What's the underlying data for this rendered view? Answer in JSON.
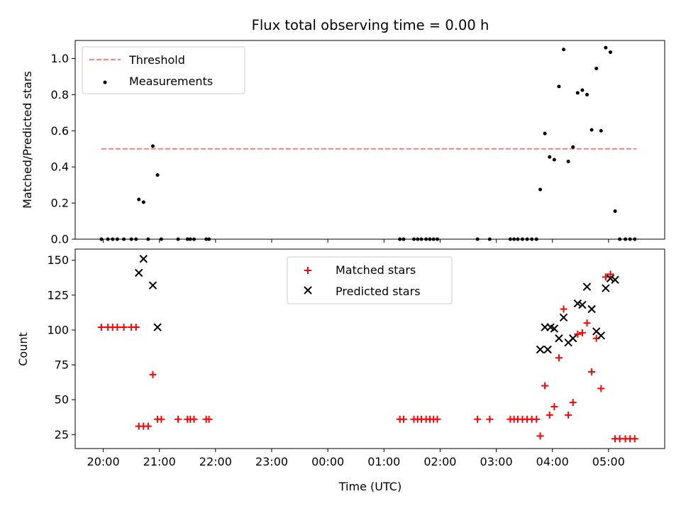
{
  "chart_data": [
    {
      "type": "scatter",
      "title": "Flux total observing time = 0.00 h",
      "xlabel": "",
      "ylabel": "Matched/Predicted stars",
      "x_range": [
        "19:30",
        "06:00"
      ],
      "ylim": [
        0,
        1.1
      ],
      "y_ticks": [
        "0.0",
        "0.2",
        "0.4",
        "0.6",
        "0.8",
        "1.0"
      ],
      "legend_position": "top-left",
      "grid": false,
      "series": [
        {
          "name": "Threshold",
          "kind": "dashed-line",
          "color": "#ff7f7f",
          "points": [
            {
              "x": "19:58",
              "y": 0.5
            },
            {
              "x": "05:30",
              "y": 0.5
            }
          ]
        },
        {
          "name": "Measurements",
          "kind": "dots",
          "color": "#000000",
          "points": [
            {
              "x": "19:58",
              "y": 0.0
            },
            {
              "x": "20:05",
              "y": 0.0
            },
            {
              "x": "20:10",
              "y": 0.0
            },
            {
              "x": "20:15",
              "y": 0.0
            },
            {
              "x": "20:22",
              "y": 0.0
            },
            {
              "x": "20:30",
              "y": 0.0
            },
            {
              "x": "20:35",
              "y": 0.0
            },
            {
              "x": "20:38",
              "y": 0.22
            },
            {
              "x": "20:43",
              "y": 0.205
            },
            {
              "x": "20:48",
              "y": 0.0
            },
            {
              "x": "20:53",
              "y": 0.515
            },
            {
              "x": "20:58",
              "y": 0.355
            },
            {
              "x": "21:02",
              "y": 0.0
            },
            {
              "x": "21:20",
              "y": 0.0
            },
            {
              "x": "21:30",
              "y": 0.0
            },
            {
              "x": "21:33",
              "y": 0.0
            },
            {
              "x": "21:37",
              "y": 0.0
            },
            {
              "x": "21:50",
              "y": 0.0
            },
            {
              "x": "21:53",
              "y": 0.0
            },
            {
              "x": "01:17",
              "y": 0.0
            },
            {
              "x": "01:21",
              "y": 0.0
            },
            {
              "x": "01:32",
              "y": 0.0
            },
            {
              "x": "01:36",
              "y": 0.0
            },
            {
              "x": "01:40",
              "y": 0.0
            },
            {
              "x": "01:45",
              "y": 0.0
            },
            {
              "x": "01:49",
              "y": 0.0
            },
            {
              "x": "01:53",
              "y": 0.0
            },
            {
              "x": "01:57",
              "y": 0.0
            },
            {
              "x": "02:40",
              "y": 0.0
            },
            {
              "x": "02:53",
              "y": 0.0
            },
            {
              "x": "03:15",
              "y": 0.0
            },
            {
              "x": "03:19",
              "y": 0.0
            },
            {
              "x": "03:23",
              "y": 0.0
            },
            {
              "x": "03:28",
              "y": 0.0
            },
            {
              "x": "03:33",
              "y": 0.0
            },
            {
              "x": "03:38",
              "y": 0.0
            },
            {
              "x": "03:43",
              "y": 0.0
            },
            {
              "x": "03:47",
              "y": 0.275
            },
            {
              "x": "03:52",
              "y": 0.585
            },
            {
              "x": "03:57",
              "y": 0.455
            },
            {
              "x": "04:02",
              "y": 0.44
            },
            {
              "x": "04:07",
              "y": 0.845
            },
            {
              "x": "04:12",
              "y": 1.05
            },
            {
              "x": "04:17",
              "y": 0.43
            },
            {
              "x": "04:22",
              "y": 0.51
            },
            {
              "x": "04:27",
              "y": 0.81
            },
            {
              "x": "04:32",
              "y": 0.825
            },
            {
              "x": "04:37",
              "y": 0.8
            },
            {
              "x": "04:42",
              "y": 0.605
            },
            {
              "x": "04:47",
              "y": 0.945
            },
            {
              "x": "04:52",
              "y": 0.6
            },
            {
              "x": "04:57",
              "y": 1.06
            },
            {
              "x": "05:02",
              "y": 1.035
            },
            {
              "x": "05:07",
              "y": 0.155
            },
            {
              "x": "05:12",
              "y": 0.0
            },
            {
              "x": "05:18",
              "y": 0.0
            },
            {
              "x": "05:23",
              "y": 0.0
            },
            {
              "x": "05:28",
              "y": 0.0
            }
          ]
        }
      ]
    },
    {
      "type": "scatter",
      "title": "",
      "xlabel": "Time (UTC)",
      "ylabel": "Count",
      "x_range": [
        "19:30",
        "06:00"
      ],
      "ylim": [
        15,
        158
      ],
      "y_ticks": [
        "25",
        "50",
        "75",
        "100",
        "125",
        "150"
      ],
      "x_ticks": [
        "20:00",
        "21:00",
        "22:00",
        "23:00",
        "00:00",
        "01:00",
        "02:00",
        "03:00",
        "04:00",
        "05:00"
      ],
      "legend_position": "top-center",
      "grid": false,
      "series": [
        {
          "name": "Matched stars",
          "kind": "plus",
          "color": "#ff0000",
          "points": [
            {
              "x": "19:58",
              "y": 102
            },
            {
              "x": "20:05",
              "y": 102
            },
            {
              "x": "20:10",
              "y": 102
            },
            {
              "x": "20:15",
              "y": 102
            },
            {
              "x": "20:22",
              "y": 102
            },
            {
              "x": "20:30",
              "y": 102
            },
            {
              "x": "20:35",
              "y": 102
            },
            {
              "x": "20:38",
              "y": 31
            },
            {
              "x": "20:43",
              "y": 31
            },
            {
              "x": "20:48",
              "y": 31
            },
            {
              "x": "20:53",
              "y": 68
            },
            {
              "x": "20:58",
              "y": 36
            },
            {
              "x": "21:02",
              "y": 36
            },
            {
              "x": "21:20",
              "y": 36
            },
            {
              "x": "21:30",
              "y": 36
            },
            {
              "x": "21:33",
              "y": 36
            },
            {
              "x": "21:37",
              "y": 36
            },
            {
              "x": "21:50",
              "y": 36
            },
            {
              "x": "21:53",
              "y": 36
            },
            {
              "x": "01:17",
              "y": 36
            },
            {
              "x": "01:21",
              "y": 36
            },
            {
              "x": "01:32",
              "y": 36
            },
            {
              "x": "01:36",
              "y": 36
            },
            {
              "x": "01:40",
              "y": 36
            },
            {
              "x": "01:45",
              "y": 36
            },
            {
              "x": "01:49",
              "y": 36
            },
            {
              "x": "01:53",
              "y": 36
            },
            {
              "x": "01:57",
              "y": 36
            },
            {
              "x": "02:40",
              "y": 36
            },
            {
              "x": "02:53",
              "y": 36
            },
            {
              "x": "03:15",
              "y": 36
            },
            {
              "x": "03:19",
              "y": 36
            },
            {
              "x": "03:23",
              "y": 36
            },
            {
              "x": "03:28",
              "y": 36
            },
            {
              "x": "03:33",
              "y": 36
            },
            {
              "x": "03:38",
              "y": 36
            },
            {
              "x": "03:43",
              "y": 36
            },
            {
              "x": "03:47",
              "y": 24
            },
            {
              "x": "03:52",
              "y": 60
            },
            {
              "x": "03:57",
              "y": 39
            },
            {
              "x": "04:02",
              "y": 45
            },
            {
              "x": "04:07",
              "y": 80
            },
            {
              "x": "04:12",
              "y": 115
            },
            {
              "x": "04:17",
              "y": 39
            },
            {
              "x": "04:22",
              "y": 48
            },
            {
              "x": "04:27",
              "y": 97
            },
            {
              "x": "04:32",
              "y": 98
            },
            {
              "x": "04:37",
              "y": 105
            },
            {
              "x": "04:42",
              "y": 70
            },
            {
              "x": "04:47",
              "y": 94
            },
            {
              "x": "04:52",
              "y": 58
            },
            {
              "x": "04:57",
              "y": 138
            },
            {
              "x": "05:02",
              "y": 140
            },
            {
              "x": "05:07",
              "y": 22
            },
            {
              "x": "05:12",
              "y": 22
            },
            {
              "x": "05:18",
              "y": 22
            },
            {
              "x": "05:23",
              "y": 22
            },
            {
              "x": "05:28",
              "y": 22
            }
          ]
        },
        {
          "name": "Predicted stars",
          "kind": "cross",
          "color": "#000000",
          "points": [
            {
              "x": "20:38",
              "y": 141
            },
            {
              "x": "20:43",
              "y": 151
            },
            {
              "x": "20:53",
              "y": 132
            },
            {
              "x": "20:58",
              "y": 102
            },
            {
              "x": "03:47",
              "y": 86
            },
            {
              "x": "03:52",
              "y": 102
            },
            {
              "x": "03:55",
              "y": 86
            },
            {
              "x": "03:58",
              "y": 102
            },
            {
              "x": "04:02",
              "y": 101
            },
            {
              "x": "04:07",
              "y": 94
            },
            {
              "x": "04:12",
              "y": 109
            },
            {
              "x": "04:17",
              "y": 91
            },
            {
              "x": "04:22",
              "y": 94
            },
            {
              "x": "04:27",
              "y": 119
            },
            {
              "x": "04:32",
              "y": 118
            },
            {
              "x": "04:37",
              "y": 131
            },
            {
              "x": "04:42",
              "y": 115
            },
            {
              "x": "04:47",
              "y": 99
            },
            {
              "x": "04:52",
              "y": 96
            },
            {
              "x": "04:57",
              "y": 130
            },
            {
              "x": "05:02",
              "y": 137
            },
            {
              "x": "05:07",
              "y": 136
            }
          ]
        }
      ]
    }
  ]
}
